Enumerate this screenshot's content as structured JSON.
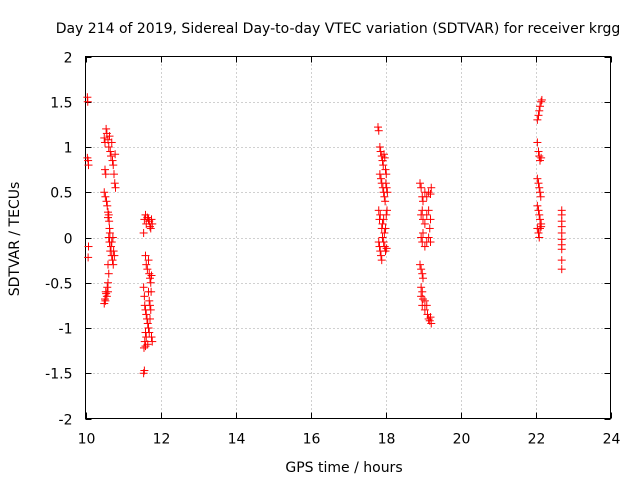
{
  "chart_data": {
    "type": "scatter",
    "title": "Day 214 of 2019, Sidereal Day-to-day VTEC variation (SDTVAR) for receiver krgg",
    "xlabel": "GPS time / hours",
    "ylabel": "SDTVAR / TECUs",
    "xlim": [
      10,
      24
    ],
    "ylim": [
      -2,
      2
    ],
    "xticks": [
      10,
      12,
      14,
      16,
      18,
      20,
      22,
      24
    ],
    "yticks": [
      -2,
      -1.5,
      -1,
      -0.5,
      0,
      0.5,
      1,
      1.5,
      2
    ],
    "ytick_labels": [
      "-2",
      "-1.5",
      "-1",
      "-0.5",
      "0",
      "0.5",
      "1",
      "1.5",
      "2"
    ],
    "grid": true,
    "marker": "+",
    "color": "#ff0000",
    "series": [
      {
        "name": "SDTVAR",
        "points": [
          [
            10.05,
            1.55
          ],
          [
            10.06,
            1.5
          ],
          [
            10.05,
            0.88
          ],
          [
            10.07,
            0.85
          ],
          [
            10.08,
            0.8
          ],
          [
            10.08,
            -0.1
          ],
          [
            10.07,
            -0.22
          ],
          [
            10.5,
            1.1
          ],
          [
            10.52,
            1.05
          ],
          [
            10.55,
            1.2
          ],
          [
            10.57,
            1.15
          ],
          [
            10.6,
            1.08
          ],
          [
            10.62,
            1.0
          ],
          [
            10.64,
            1.12
          ],
          [
            10.66,
            0.95
          ],
          [
            10.68,
            0.9
          ],
          [
            10.7,
            1.05
          ],
          [
            10.72,
            0.85
          ],
          [
            10.74,
            0.8
          ],
          [
            10.76,
            0.7
          ],
          [
            10.78,
            0.6
          ],
          [
            10.8,
            0.55
          ],
          [
            10.79,
            0.92
          ],
          [
            10.52,
            0.75
          ],
          [
            10.54,
            0.7
          ],
          [
            10.5,
            0.5
          ],
          [
            10.53,
            0.45
          ],
          [
            10.56,
            0.4
          ],
          [
            10.58,
            0.35
          ],
          [
            10.6,
            0.28
          ],
          [
            10.6,
            0.22
          ],
          [
            10.62,
            0.25
          ],
          [
            10.63,
            0.18
          ],
          [
            10.64,
            0.1
          ],
          [
            10.65,
            0.05
          ],
          [
            10.62,
            0.0
          ],
          [
            10.64,
            -0.05
          ],
          [
            10.66,
            -0.15
          ],
          [
            10.68,
            -0.1
          ],
          [
            10.7,
            -0.2
          ],
          [
            10.72,
            -0.25
          ],
          [
            10.74,
            -0.3
          ],
          [
            10.7,
            -0.05
          ],
          [
            10.73,
            0.0
          ],
          [
            10.75,
            -0.15
          ],
          [
            10.77,
            -0.2
          ],
          [
            10.6,
            -0.3
          ],
          [
            10.62,
            -0.4
          ],
          [
            10.6,
            -0.5
          ],
          [
            10.58,
            -0.55
          ],
          [
            10.6,
            -0.6
          ],
          [
            10.57,
            -0.65
          ],
          [
            10.55,
            -0.62
          ],
          [
            10.53,
            -0.7
          ],
          [
            10.5,
            -0.73
          ],
          [
            10.52,
            -0.68
          ],
          [
            10.54,
            -0.6
          ],
          [
            11.55,
            0.05
          ],
          [
            11.57,
            0.2
          ],
          [
            11.6,
            0.25
          ],
          [
            11.62,
            0.15
          ],
          [
            11.65,
            0.22
          ],
          [
            11.68,
            0.2
          ],
          [
            11.7,
            0.18
          ],
          [
            11.72,
            0.12
          ],
          [
            11.74,
            0.1
          ],
          [
            11.76,
            0.2
          ],
          [
            11.78,
            0.15
          ],
          [
            11.6,
            -0.2
          ],
          [
            11.62,
            -0.3
          ],
          [
            11.65,
            -0.35
          ],
          [
            11.68,
            -0.25
          ],
          [
            11.7,
            -0.4
          ],
          [
            11.72,
            -0.45
          ],
          [
            11.74,
            -0.5
          ],
          [
            11.76,
            -0.42
          ],
          [
            11.75,
            -0.6
          ],
          [
            11.55,
            -0.55
          ],
          [
            11.57,
            -0.65
          ],
          [
            11.58,
            -0.75
          ],
          [
            11.6,
            -0.8
          ],
          [
            11.62,
            -0.85
          ],
          [
            11.64,
            -0.9
          ],
          [
            11.66,
            -0.95
          ],
          [
            11.68,
            -1.0
          ],
          [
            11.7,
            -1.05
          ],
          [
            11.72,
            -0.9
          ],
          [
            11.74,
            -0.8
          ],
          [
            11.76,
            -1.1
          ],
          [
            11.78,
            -1.15
          ],
          [
            11.6,
            -1.05
          ],
          [
            11.62,
            -1.1
          ],
          [
            11.58,
            -1.15
          ],
          [
            11.6,
            -1.2
          ],
          [
            11.56,
            -1.22
          ],
          [
            11.66,
            -1.18
          ],
          [
            11.7,
            -0.7
          ],
          [
            11.72,
            -0.75
          ],
          [
            11.68,
            -0.6
          ],
          [
            11.55,
            -1.5
          ],
          [
            11.57,
            -1.47
          ],
          [
            17.8,
            1.22
          ],
          [
            17.82,
            1.18
          ],
          [
            17.85,
            1.0
          ],
          [
            17.87,
            0.95
          ],
          [
            17.9,
            0.9
          ],
          [
            17.92,
            0.85
          ],
          [
            17.94,
            0.8
          ],
          [
            17.96,
            0.92
          ],
          [
            17.98,
            0.88
          ],
          [
            18.0,
            0.75
          ],
          [
            18.02,
            0.7
          ],
          [
            17.85,
            0.7
          ],
          [
            17.88,
            0.65
          ],
          [
            17.9,
            0.6
          ],
          [
            17.93,
            0.55
          ],
          [
            17.95,
            0.5
          ],
          [
            17.97,
            0.45
          ],
          [
            17.99,
            0.4
          ],
          [
            18.01,
            0.6
          ],
          [
            18.03,
            0.55
          ],
          [
            18.05,
            0.5
          ],
          [
            17.82,
            0.3
          ],
          [
            17.84,
            0.2
          ],
          [
            17.86,
            0.25
          ],
          [
            17.9,
            0.1
          ],
          [
            17.92,
            0.15
          ],
          [
            17.95,
            0.2
          ],
          [
            17.97,
            0.05
          ],
          [
            18.0,
            0.1
          ],
          [
            18.02,
            0.25
          ],
          [
            18.04,
            0.3
          ],
          [
            17.82,
            -0.05
          ],
          [
            17.84,
            -0.1
          ],
          [
            17.86,
            -0.15
          ],
          [
            17.88,
            -0.2
          ],
          [
            17.9,
            -0.25
          ],
          [
            17.92,
            0.0
          ],
          [
            17.95,
            -0.05
          ],
          [
            17.98,
            -0.1
          ],
          [
            18.0,
            -0.15
          ],
          [
            18.03,
            -0.12
          ],
          [
            18.92,
            0.6
          ],
          [
            18.95,
            0.55
          ],
          [
            18.98,
            0.45
          ],
          [
            19.0,
            0.4
          ],
          [
            19.05,
            0.5
          ],
          [
            19.1,
            0.45
          ],
          [
            19.15,
            0.5
          ],
          [
            19.2,
            0.48
          ],
          [
            19.22,
            0.55
          ],
          [
            18.95,
            0.25
          ],
          [
            18.98,
            0.3
          ],
          [
            19.0,
            0.2
          ],
          [
            19.05,
            0.15
          ],
          [
            19.1,
            0.25
          ],
          [
            19.15,
            0.3
          ],
          [
            19.2,
            0.2
          ],
          [
            19.18,
            0.1
          ],
          [
            18.95,
            0.0
          ],
          [
            18.98,
            -0.05
          ],
          [
            19.0,
            0.05
          ],
          [
            19.05,
            -0.1
          ],
          [
            19.1,
            -0.05
          ],
          [
            19.15,
            0.0
          ],
          [
            19.2,
            -0.05
          ],
          [
            18.92,
            -0.3
          ],
          [
            18.95,
            -0.35
          ],
          [
            18.98,
            -0.4
          ],
          [
            19.0,
            -0.45
          ],
          [
            18.95,
            -0.55
          ],
          [
            18.98,
            -0.6
          ],
          [
            18.95,
            -0.65
          ],
          [
            19.0,
            -0.68
          ],
          [
            19.05,
            -0.7
          ],
          [
            19.1,
            -0.75
          ],
          [
            19.05,
            -0.8
          ],
          [
            19.12,
            -0.85
          ],
          [
            19.15,
            -0.9
          ],
          [
            19.18,
            -0.92
          ],
          [
            19.2,
            -0.88
          ],
          [
            19.22,
            -0.95
          ],
          [
            18.98,
            -0.75
          ],
          [
            22.05,
            1.3
          ],
          [
            22.08,
            1.35
          ],
          [
            22.1,
            1.4
          ],
          [
            22.12,
            1.45
          ],
          [
            22.15,
            1.5
          ],
          [
            22.17,
            1.52
          ],
          [
            22.05,
            1.05
          ],
          [
            22.08,
            0.95
          ],
          [
            22.1,
            0.9
          ],
          [
            22.12,
            0.85
          ],
          [
            22.15,
            0.88
          ],
          [
            22.05,
            0.65
          ],
          [
            22.08,
            0.6
          ],
          [
            22.1,
            0.55
          ],
          [
            22.12,
            0.5
          ],
          [
            22.14,
            0.45
          ],
          [
            22.05,
            0.35
          ],
          [
            22.08,
            0.3
          ],
          [
            22.1,
            0.25
          ],
          [
            22.12,
            0.2
          ],
          [
            22.15,
            0.15
          ],
          [
            22.05,
            0.1
          ],
          [
            22.08,
            0.05
          ],
          [
            22.1,
            0.0
          ],
          [
            22.12,
            0.1
          ],
          [
            22.15,
            0.12
          ],
          [
            22.7,
            0.3
          ],
          [
            22.7,
            0.25
          ],
          [
            22.7,
            0.18
          ],
          [
            22.7,
            0.12
          ],
          [
            22.7,
            0.05
          ],
          [
            22.7,
            -0.02
          ],
          [
            22.7,
            -0.08
          ],
          [
            22.7,
            -0.13
          ],
          [
            22.7,
            -0.25
          ],
          [
            22.7,
            -0.35
          ]
        ]
      }
    ]
  }
}
